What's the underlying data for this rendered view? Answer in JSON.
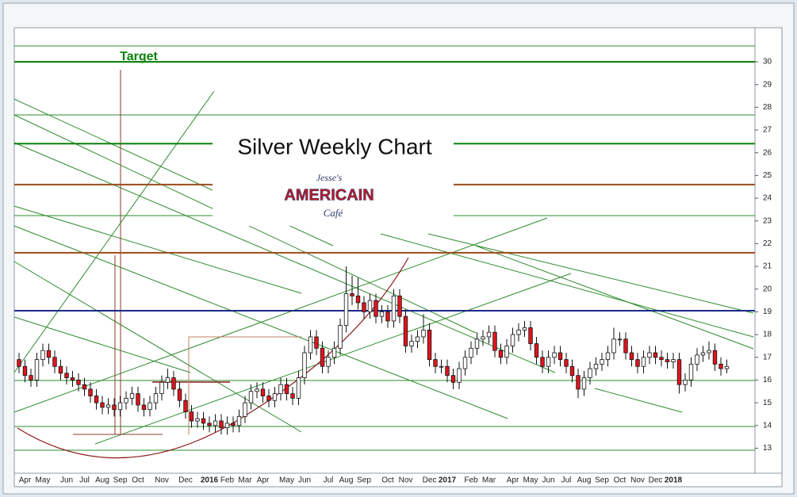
{
  "chart_data": {
    "type": "candlestick",
    "title": "Silver Weekly Chart",
    "logo": {
      "top": "Jesse's",
      "middle": "AMERICAIN",
      "bottom": "Café"
    },
    "annotation": "Target",
    "ylim": [
      11.9,
      31.5
    ],
    "yticks": [
      13,
      14,
      15,
      16,
      17,
      18,
      19,
      20,
      21,
      22,
      23,
      24,
      25,
      26,
      27,
      28,
      29,
      30
    ],
    "up_color": "#ffffff",
    "down_color": "#e0141e",
    "hlines": [
      {
        "value": 30,
        "color": "#0a800a"
      },
      {
        "value": 26.4,
        "color": "#0a800a"
      },
      {
        "value": 24.6,
        "color": "#9a4a1a"
      },
      {
        "value": 21.6,
        "color": "#9a4a1a"
      },
      {
        "value": 19.05,
        "color": "#1a2a8a"
      }
    ],
    "categories": [
      null,
      "Apr",
      null,
      null,
      "May",
      null,
      null,
      null,
      "Jun",
      null,
      null,
      "Jul",
      null,
      null,
      "Aug",
      null,
      null,
      "Sep",
      null,
      null,
      "Oct",
      null,
      null,
      null,
      "Nov",
      null,
      null,
      null,
      "Dec",
      null,
      null,
      null,
      "2016",
      null,
      null,
      "Feb",
      null,
      null,
      "Mar",
      null,
      null,
      "Apr",
      null,
      null,
      null,
      "May",
      null,
      null,
      "Jun",
      null,
      null,
      null,
      "Jul",
      null,
      null,
      "Aug",
      null,
      null,
      "Sep",
      null,
      null,
      null,
      "Oct",
      null,
      null,
      "Nov",
      null,
      null,
      null,
      "Dec",
      null,
      null,
      "2017",
      null,
      null,
      null,
      "Feb",
      null,
      null,
      "Mar",
      null,
      null,
      null,
      "Apr",
      null,
      null,
      "May",
      null,
      null,
      "Jun",
      null,
      null,
      "Jul",
      null,
      null,
      "Aug",
      null,
      null,
      "Sep",
      null,
      null,
      "Oct",
      null,
      null,
      "Nov",
      null,
      null,
      "Dec",
      null,
      null,
      "2018",
      null,
      null,
      null,
      null,
      null,
      null,
      null,
      null,
      null
    ],
    "candles": [
      [
        16.9,
        17.2,
        16.3,
        16.6
      ],
      [
        16.6,
        16.9,
        15.9,
        16.2
      ],
      [
        16.2,
        16.5,
        15.7,
        16.0
      ],
      [
        16.0,
        17.2,
        15.7,
        16.9
      ],
      [
        16.9,
        17.6,
        16.6,
        17.3
      ],
      [
        17.3,
        17.6,
        16.7,
        17.0
      ],
      [
        17.0,
        17.3,
        16.3,
        16.6
      ],
      [
        16.6,
        16.9,
        16.0,
        16.3
      ],
      [
        16.3,
        16.6,
        15.8,
        16.1
      ],
      [
        16.1,
        16.4,
        15.7,
        16.0
      ],
      [
        16.0,
        16.3,
        15.5,
        15.8
      ],
      [
        15.8,
        16.1,
        15.3,
        15.6
      ],
      [
        15.6,
        15.9,
        15.0,
        15.3
      ],
      [
        15.3,
        15.6,
        14.7,
        15.0
      ],
      [
        15.0,
        15.3,
        14.5,
        14.8
      ],
      [
        14.8,
        15.2,
        14.5,
        14.9
      ],
      [
        14.9,
        15.2,
        14.4,
        14.7
      ],
      [
        14.7,
        15.3,
        14.4,
        15.0
      ],
      [
        15.0,
        15.5,
        14.7,
        15.2
      ],
      [
        15.2,
        15.7,
        14.9,
        15.4
      ],
      [
        15.4,
        15.7,
        14.6,
        14.9
      ],
      [
        14.9,
        15.2,
        14.4,
        14.7
      ],
      [
        14.7,
        15.3,
        14.4,
        15.0
      ],
      [
        15.0,
        15.7,
        14.7,
        15.4
      ],
      [
        15.4,
        16.2,
        15.1,
        15.9
      ],
      [
        15.9,
        16.5,
        15.6,
        16.1
      ],
      [
        16.1,
        16.4,
        15.3,
        15.6
      ],
      [
        15.6,
        15.9,
        14.8,
        15.1
      ],
      [
        15.1,
        15.4,
        14.3,
        14.6
      ],
      [
        14.6,
        14.9,
        13.9,
        14.2
      ],
      [
        14.2,
        14.6,
        13.9,
        14.3
      ],
      [
        14.3,
        14.6,
        13.8,
        14.1
      ],
      [
        14.1,
        14.4,
        13.7,
        14.0
      ],
      [
        14.0,
        14.5,
        13.7,
        14.2
      ],
      [
        14.2,
        14.5,
        13.6,
        13.9
      ],
      [
        13.9,
        14.4,
        13.6,
        14.1
      ],
      [
        14.1,
        14.4,
        13.7,
        14.0
      ],
      [
        14.0,
        14.7,
        13.7,
        14.4
      ],
      [
        14.4,
        15.3,
        14.1,
        15.0
      ],
      [
        15.0,
        15.8,
        14.7,
        15.5
      ],
      [
        15.5,
        15.9,
        15.2,
        15.6
      ],
      [
        15.6,
        15.9,
        15.0,
        15.3
      ],
      [
        15.3,
        15.6,
        14.8,
        15.1
      ],
      [
        15.1,
        15.7,
        14.8,
        15.4
      ],
      [
        15.4,
        16.1,
        15.1,
        15.8
      ],
      [
        15.8,
        16.1,
        15.1,
        15.4
      ],
      [
        15.4,
        15.7,
        14.9,
        15.2
      ],
      [
        15.2,
        16.4,
        14.9,
        16.1
      ],
      [
        16.1,
        17.5,
        15.8,
        17.2
      ],
      [
        17.2,
        18.2,
        16.9,
        17.9
      ],
      [
        17.9,
        18.2,
        17.1,
        17.4
      ],
      [
        17.4,
        17.7,
        16.3,
        16.6
      ],
      [
        16.6,
        17.3,
        16.3,
        17.0
      ],
      [
        17.0,
        17.7,
        16.7,
        17.4
      ],
      [
        17.4,
        18.7,
        17.1,
        18.4
      ],
      [
        18.4,
        21.0,
        18.1,
        19.8
      ],
      [
        19.8,
        20.6,
        19.3,
        19.7
      ],
      [
        19.7,
        20.5,
        19.1,
        19.4
      ],
      [
        19.4,
        19.7,
        18.7,
        19.0
      ],
      [
        19.0,
        19.8,
        18.7,
        19.5
      ],
      [
        19.5,
        19.8,
        18.5,
        18.8
      ],
      [
        18.8,
        19.3,
        18.5,
        19.0
      ],
      [
        19.0,
        19.3,
        18.3,
        18.6
      ],
      [
        18.6,
        20.0,
        18.3,
        19.7
      ],
      [
        19.7,
        20.0,
        18.5,
        18.8
      ],
      [
        18.8,
        19.1,
        17.2,
        17.5
      ],
      [
        17.5,
        18.0,
        17.2,
        17.7
      ],
      [
        17.7,
        18.2,
        17.4,
        17.9
      ],
      [
        17.9,
        18.9,
        17.6,
        18.2
      ],
      [
        18.2,
        18.5,
        16.6,
        16.9
      ],
      [
        16.9,
        17.2,
        16.3,
        16.6
      ],
      [
        16.6,
        16.9,
        16.3,
        16.6
      ],
      [
        16.6,
        16.9,
        15.9,
        16.2
      ],
      [
        16.2,
        16.5,
        15.6,
        15.9
      ],
      [
        15.9,
        16.8,
        15.6,
        16.5
      ],
      [
        16.5,
        17.3,
        16.2,
        17.0
      ],
      [
        17.0,
        17.7,
        16.7,
        17.4
      ],
      [
        17.4,
        18.1,
        17.1,
        17.8
      ],
      [
        17.8,
        18.2,
        17.5,
        17.9
      ],
      [
        17.9,
        18.4,
        17.6,
        18.1
      ],
      [
        18.1,
        18.4,
        17.0,
        17.3
      ],
      [
        17.3,
        17.6,
        16.7,
        17.0
      ],
      [
        17.0,
        17.8,
        16.7,
        17.5
      ],
      [
        17.5,
        18.3,
        17.2,
        18.0
      ],
      [
        18.0,
        18.5,
        17.7,
        18.2
      ],
      [
        18.2,
        18.6,
        17.9,
        18.3
      ],
      [
        18.3,
        18.6,
        17.3,
        17.6
      ],
      [
        17.6,
        17.9,
        16.7,
        17.0
      ],
      [
        17.0,
        17.3,
        16.3,
        16.6
      ],
      [
        16.6,
        17.3,
        16.3,
        17.0
      ],
      [
        17.0,
        17.5,
        16.7,
        17.2
      ],
      [
        17.2,
        17.5,
        16.6,
        16.9
      ],
      [
        16.9,
        17.2,
        16.3,
        16.6
      ],
      [
        16.6,
        16.9,
        15.9,
        16.2
      ],
      [
        16.2,
        16.5,
        15.2,
        15.6
      ],
      [
        15.6,
        16.4,
        15.3,
        16.1
      ],
      [
        16.1,
        16.8,
        15.8,
        16.5
      ],
      [
        16.5,
        17.0,
        16.2,
        16.7
      ],
      [
        16.7,
        17.2,
        16.4,
        16.9
      ],
      [
        16.9,
        17.5,
        16.6,
        17.2
      ],
      [
        17.2,
        18.3,
        16.9,
        17.8
      ],
      [
        17.8,
        18.1,
        17.5,
        17.8
      ],
      [
        17.8,
        18.1,
        16.9,
        17.2
      ],
      [
        17.2,
        17.5,
        16.6,
        16.9
      ],
      [
        16.9,
        17.2,
        16.3,
        16.6
      ],
      [
        16.6,
        17.3,
        16.3,
        17.0
      ],
      [
        17.0,
        17.5,
        16.7,
        17.2
      ],
      [
        17.2,
        17.5,
        16.7,
        17.0
      ],
      [
        17.0,
        17.3,
        16.6,
        16.9
      ],
      [
        16.9,
        17.2,
        16.5,
        16.8
      ],
      [
        16.8,
        17.2,
        16.5,
        16.9
      ],
      [
        16.9,
        17.2,
        15.4,
        15.8
      ],
      [
        15.8,
        16.3,
        15.5,
        16.0
      ],
      [
        16.0,
        17.0,
        15.7,
        16.7
      ],
      [
        16.7,
        17.4,
        16.4,
        17.1
      ],
      [
        17.1,
        17.5,
        16.8,
        17.2
      ],
      [
        17.2,
        17.7,
        16.9,
        17.3
      ],
      [
        17.3,
        17.6,
        16.4,
        16.7
      ],
      [
        16.7,
        17.0,
        16.2,
        16.5
      ],
      [
        16.5,
        16.9,
        16.3,
        16.6
      ]
    ]
  }
}
